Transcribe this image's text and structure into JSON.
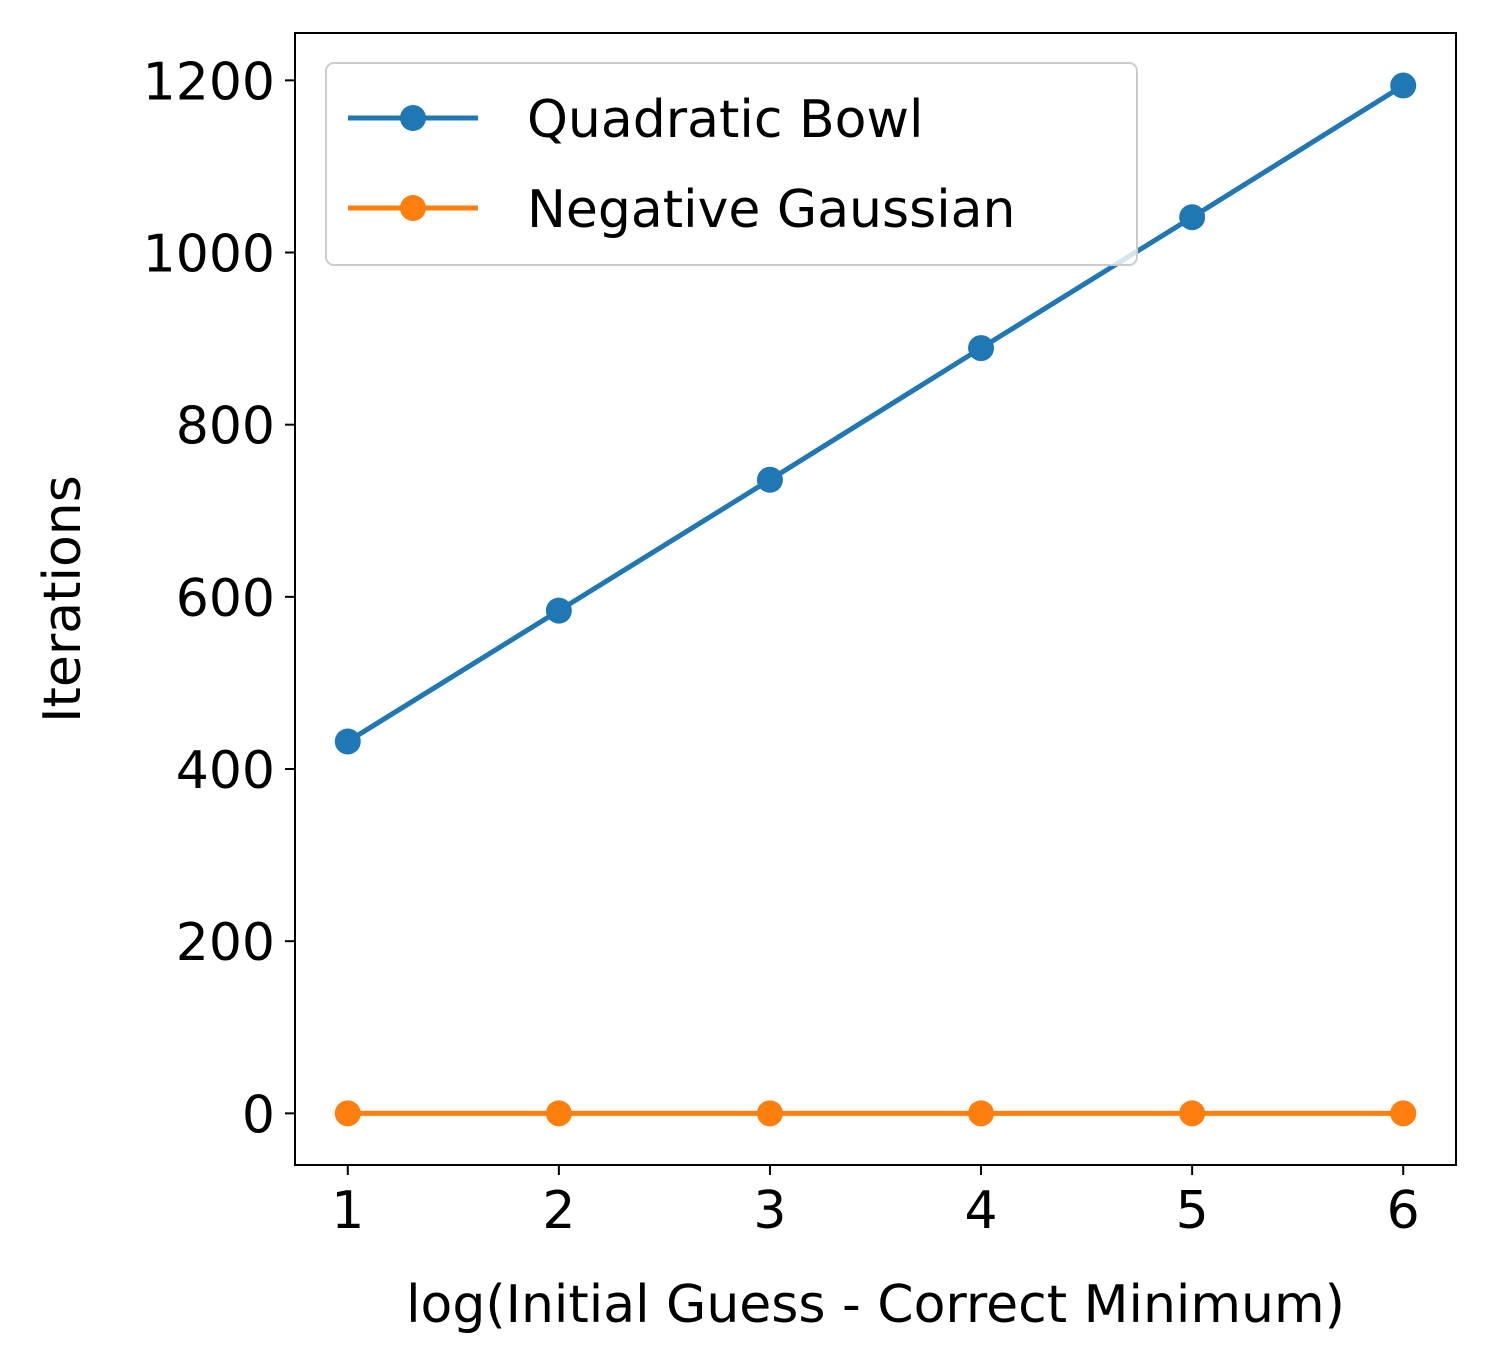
{
  "chart_data": {
    "type": "line",
    "xlabel": "log(Initial Guess - Correct Minimum)",
    "ylabel": "Iterations",
    "xlim": [
      0.75,
      6.25
    ],
    "ylim": [
      -60,
      1255
    ],
    "x_ticks": [
      1,
      2,
      3,
      4,
      5,
      6
    ],
    "y_ticks": [
      0,
      200,
      400,
      600,
      800,
      1000,
      1200
    ],
    "x_tick_labels": [
      "1",
      "2",
      "3",
      "4",
      "5",
      "6"
    ],
    "y_tick_labels": [
      "0",
      "200",
      "400",
      "600",
      "800",
      "1000",
      "1200"
    ],
    "grid": false,
    "legend_position": "upper-left",
    "series": [
      {
        "name": "Quadratic Bowl",
        "color": "#1f77b4",
        "marker": "circle",
        "x": [
          1,
          2,
          3,
          4,
          5,
          6
        ],
        "y": [
          432,
          584,
          736,
          889,
          1041,
          1194
        ]
      },
      {
        "name": "Negative Gaussian",
        "color": "#ff7f0e",
        "marker": "circle",
        "x": [
          1,
          2,
          3,
          4,
          5,
          6
        ],
        "y": [
          0,
          0,
          0,
          0,
          0,
          0
        ]
      }
    ]
  }
}
